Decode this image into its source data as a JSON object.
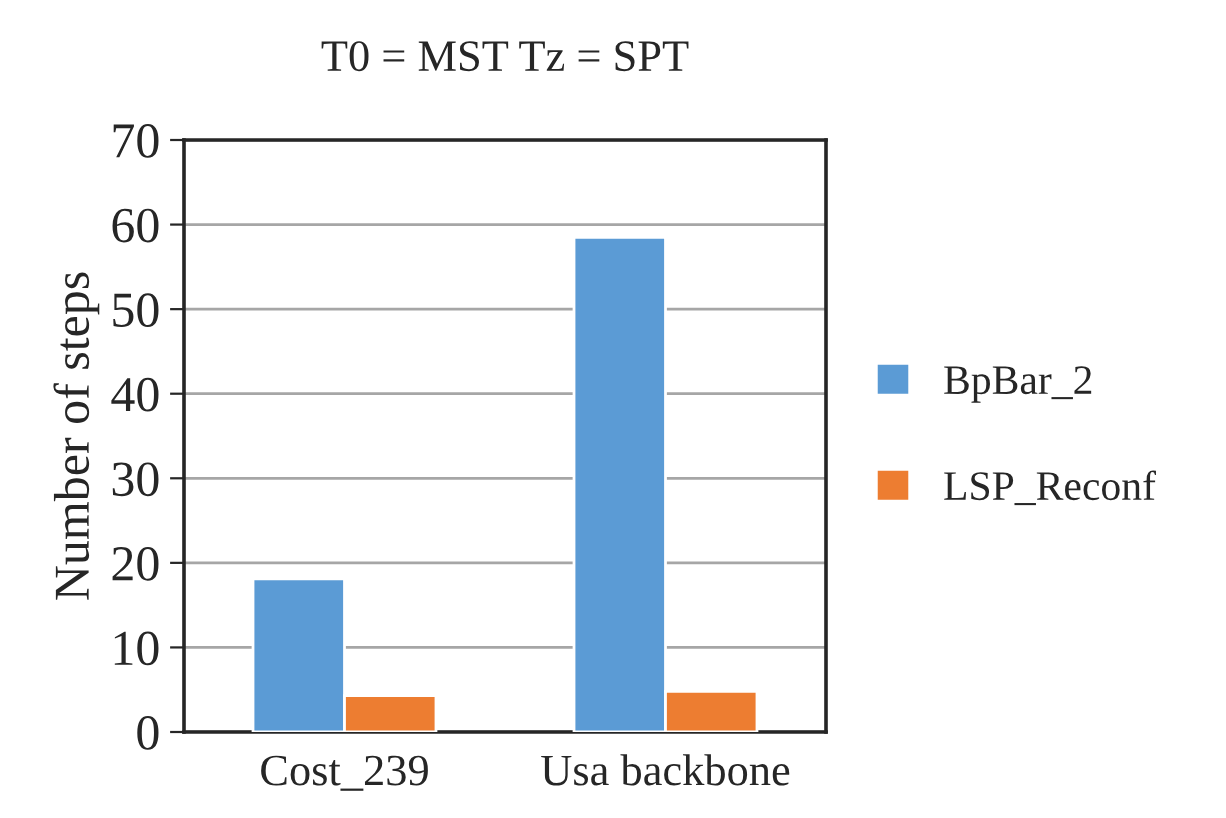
{
  "chart_data": {
    "type": "bar",
    "title": "T0 = MST Tz = SPT",
    "ylabel": "Number of steps",
    "categories": [
      "Cost_239",
      "Usa backbone"
    ],
    "series": [
      {
        "name": "BpBar_2",
        "color": "#5b9bd5",
        "values": [
          18.1,
          58.5
        ]
      },
      {
        "name": "LSP_Reconf",
        "color": "#ed7d31",
        "values": [
          4.3,
          4.8
        ]
      }
    ],
    "ylim": [
      0,
      70
    ],
    "yticks": [
      0,
      10,
      20,
      30,
      40,
      50,
      60,
      70
    ],
    "grid": "y",
    "legend": "right"
  }
}
